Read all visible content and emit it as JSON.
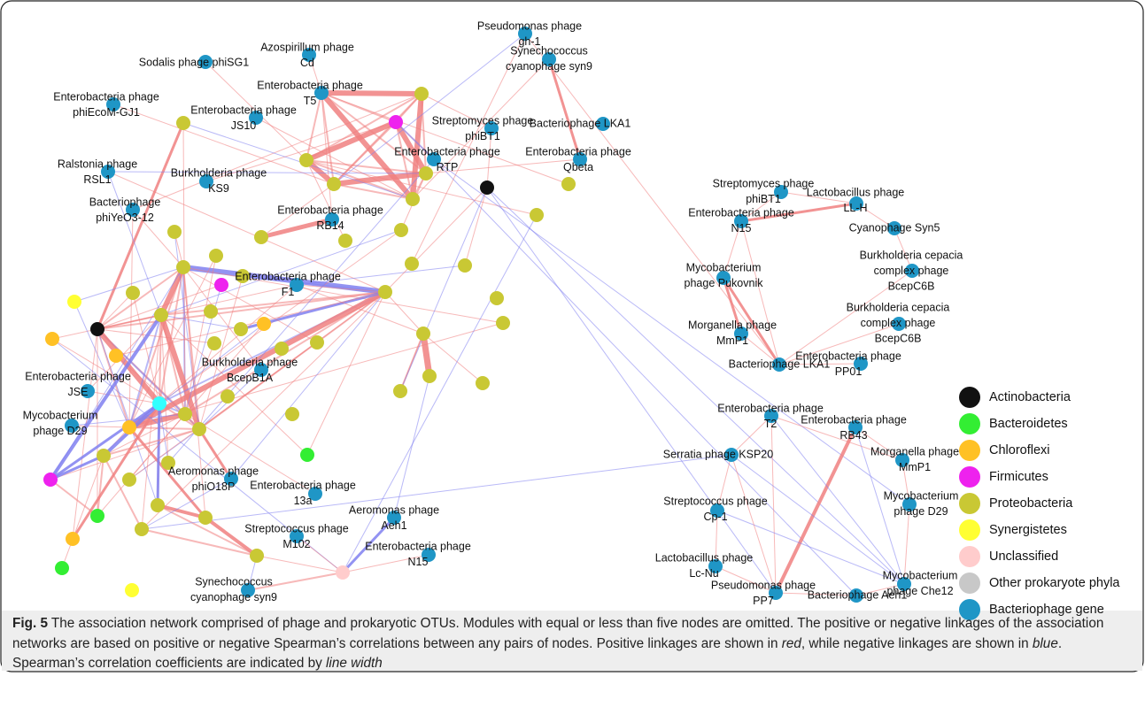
{
  "network": {
    "nodes": [
      {
        "lines": [
          "Pseudomonas phage",
          "gh-1"
        ]
      },
      {
        "lines": [
          "Azospirillum phage",
          "Cd"
        ]
      },
      {
        "lines": [
          "Sodalis phage phiSG1"
        ]
      },
      {
        "lines": [
          "Enterobacteria phage",
          "phiEcoM-GJ1"
        ]
      },
      {
        "lines": [
          "Enterobacteria phage",
          "T5"
        ]
      },
      {
        "lines": [
          "Enterobacteria phage",
          "JS10"
        ]
      },
      {
        "lines": [
          "Synechococcus",
          "cyanophage syn9"
        ]
      },
      {
        "lines": [
          "Streptomyces phage",
          "phiBT1"
        ]
      },
      {
        "lines": [
          "Bacteriophage LKA1"
        ]
      },
      {
        "lines": [
          "Enterobacteria phage",
          "RTP"
        ]
      },
      {
        "lines": [
          "Enterobacteria phage",
          "Qbeta"
        ]
      },
      {
        "lines": [
          "Ralstonia phage",
          "RSL1"
        ]
      },
      {
        "lines": [
          "Burkholderia phage",
          "KS9"
        ]
      },
      {
        "lines": [
          "Bacteriophage",
          "phiYeO3-12"
        ]
      },
      {
        "lines": [
          "Enterobacteria phage",
          "RB14"
        ]
      },
      {
        "lines": [
          "Enterobacteria phage",
          "F1"
        ]
      },
      {
        "lines": [
          "Burkholderia phage",
          "BcepB1A"
        ]
      },
      {
        "lines": [
          "Enterobacteria phage",
          "JSE"
        ]
      },
      {
        "lines": [
          "Mycobacterium",
          "phage D29"
        ]
      },
      {
        "lines": [
          "Aeromonas phage",
          "phiO18P"
        ]
      },
      {
        "lines": [
          "Enterobacteria phage",
          "13a"
        ]
      },
      {
        "lines": [
          "Aeromonas phage",
          "Aeh1"
        ]
      },
      {
        "lines": [
          "Streptococcus phage",
          "M102"
        ]
      },
      {
        "lines": [
          "Enterobacteria phage",
          "N15"
        ]
      },
      {
        "lines": [
          "Synechococcus",
          "cyanophage syn9"
        ]
      },
      {
        "lines": [
          "Streptomyces phage",
          "phiBT1"
        ]
      },
      {
        "lines": [
          "Lactobacillus phage",
          "LL-H"
        ]
      },
      {
        "lines": [
          "Enterobacteria phage",
          "N15"
        ]
      },
      {
        "lines": [
          "Cyanophage Syn5"
        ]
      },
      {
        "lines": [
          "Burkholderia cepacia",
          "complex phage",
          "BcepC6B"
        ]
      },
      {
        "lines": [
          "Mycobacterium",
          "phage Pukovnik"
        ]
      },
      {
        "lines": [
          "Burkholderia cepacia",
          "complex phage",
          "BcepC6B"
        ]
      },
      {
        "lines": [
          "Morganella phage",
          "MmP1"
        ]
      },
      {
        "lines": [
          "Bacteriophage LKA1"
        ]
      },
      {
        "lines": [
          "Enterobacteria phage",
          "PP01"
        ]
      },
      {
        "lines": [
          "Enterobacteria phage",
          "T2"
        ]
      },
      {
        "lines": [
          "Enterobacteria phage",
          "RB43"
        ]
      },
      {
        "lines": [
          "Serratia phage KSP20"
        ]
      },
      {
        "lines": [
          "Morganella phage",
          "MmP1"
        ]
      },
      {
        "lines": [
          "Streptococcus phage",
          "Cp-1"
        ]
      },
      {
        "lines": [
          "Mycobacterium",
          "phage D29"
        ]
      },
      {
        "lines": [
          "Lactobacillus phage",
          "Lc-Nu"
        ]
      },
      {
        "lines": [
          "Mycobacterium",
          "phage Che12"
        ]
      },
      {
        "lines": [
          "Pseudomonas phage",
          "PP7"
        ]
      },
      {
        "lines": [
          "Bacteriophage Aeh1"
        ]
      }
    ]
  },
  "legend": [
    {
      "label": "Actinobacteria",
      "color": "#111111"
    },
    {
      "label": "Bacteroidetes",
      "color": "#33ee33"
    },
    {
      "label": "Chloroflexi",
      "color": "#ffc125"
    },
    {
      "label": "Firmicutes",
      "color": "#ee22ee"
    },
    {
      "label": "Proteobacteria",
      "color": "#c9c834"
    },
    {
      "label": "Synergistetes",
      "color": "#ffff33"
    },
    {
      "label": "Unclassified",
      "color": "#ffcccc"
    },
    {
      "label": "Other prokaryote phyla",
      "color": "#c8c8c8"
    },
    {
      "label": "Bacteriophage gene",
      "color": "#1f96c6"
    }
  ],
  "caption": {
    "label": "Fig. 5",
    "runs": [
      " The association network comprised of phage and prokaryotic OTUs. Modules with equal or less than five nodes are omitted. The positive or negative linkages of the association networks are based on positive or negative Spearman’s correlations between any pairs of nodes. Positive linkages are shown in ",
      "red",
      ", while negative linkages are shown in ",
      "blue",
      ". Spearman’s correlation coefficients are indicated by ",
      "line width"
    ]
  }
}
